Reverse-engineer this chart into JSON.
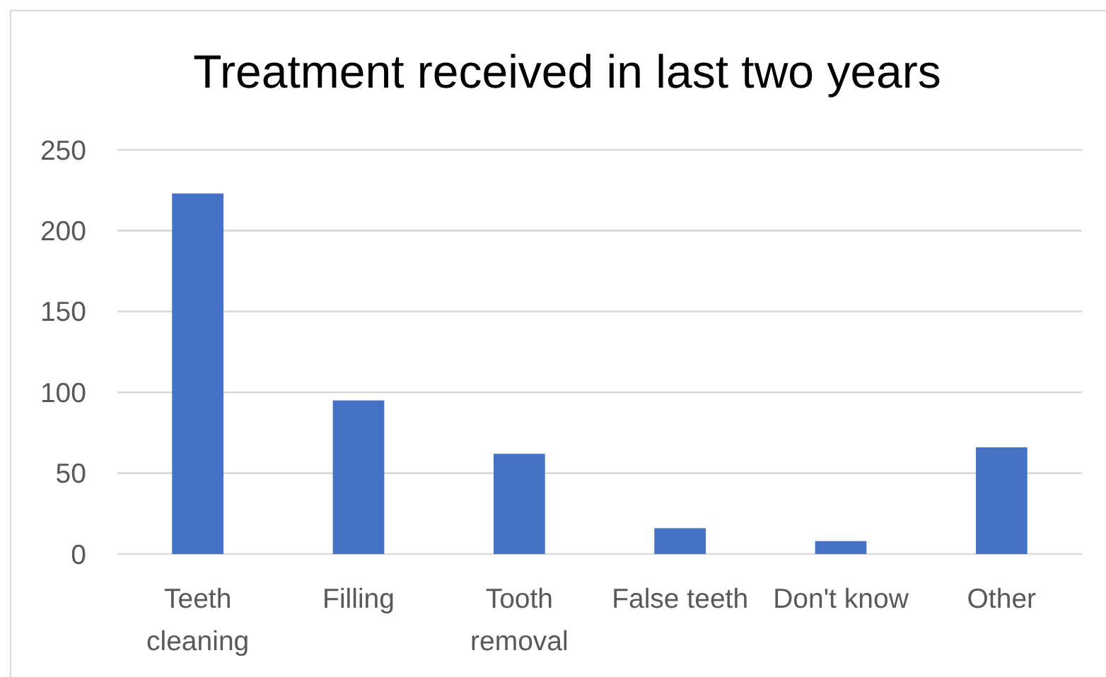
{
  "chart_data": {
    "type": "bar",
    "title": "Treatment received in last two years",
    "categories": [
      "Teeth cleaning",
      "Filling",
      "Tooth removal",
      "False teeth",
      "Don't know",
      "Other"
    ],
    "values": [
      223,
      95,
      62,
      16,
      8,
      66
    ],
    "color": "#4472c4",
    "ylim": [
      0,
      250
    ],
    "yticks": [
      0,
      50,
      100,
      150,
      200,
      250
    ],
    "grid": "y"
  }
}
